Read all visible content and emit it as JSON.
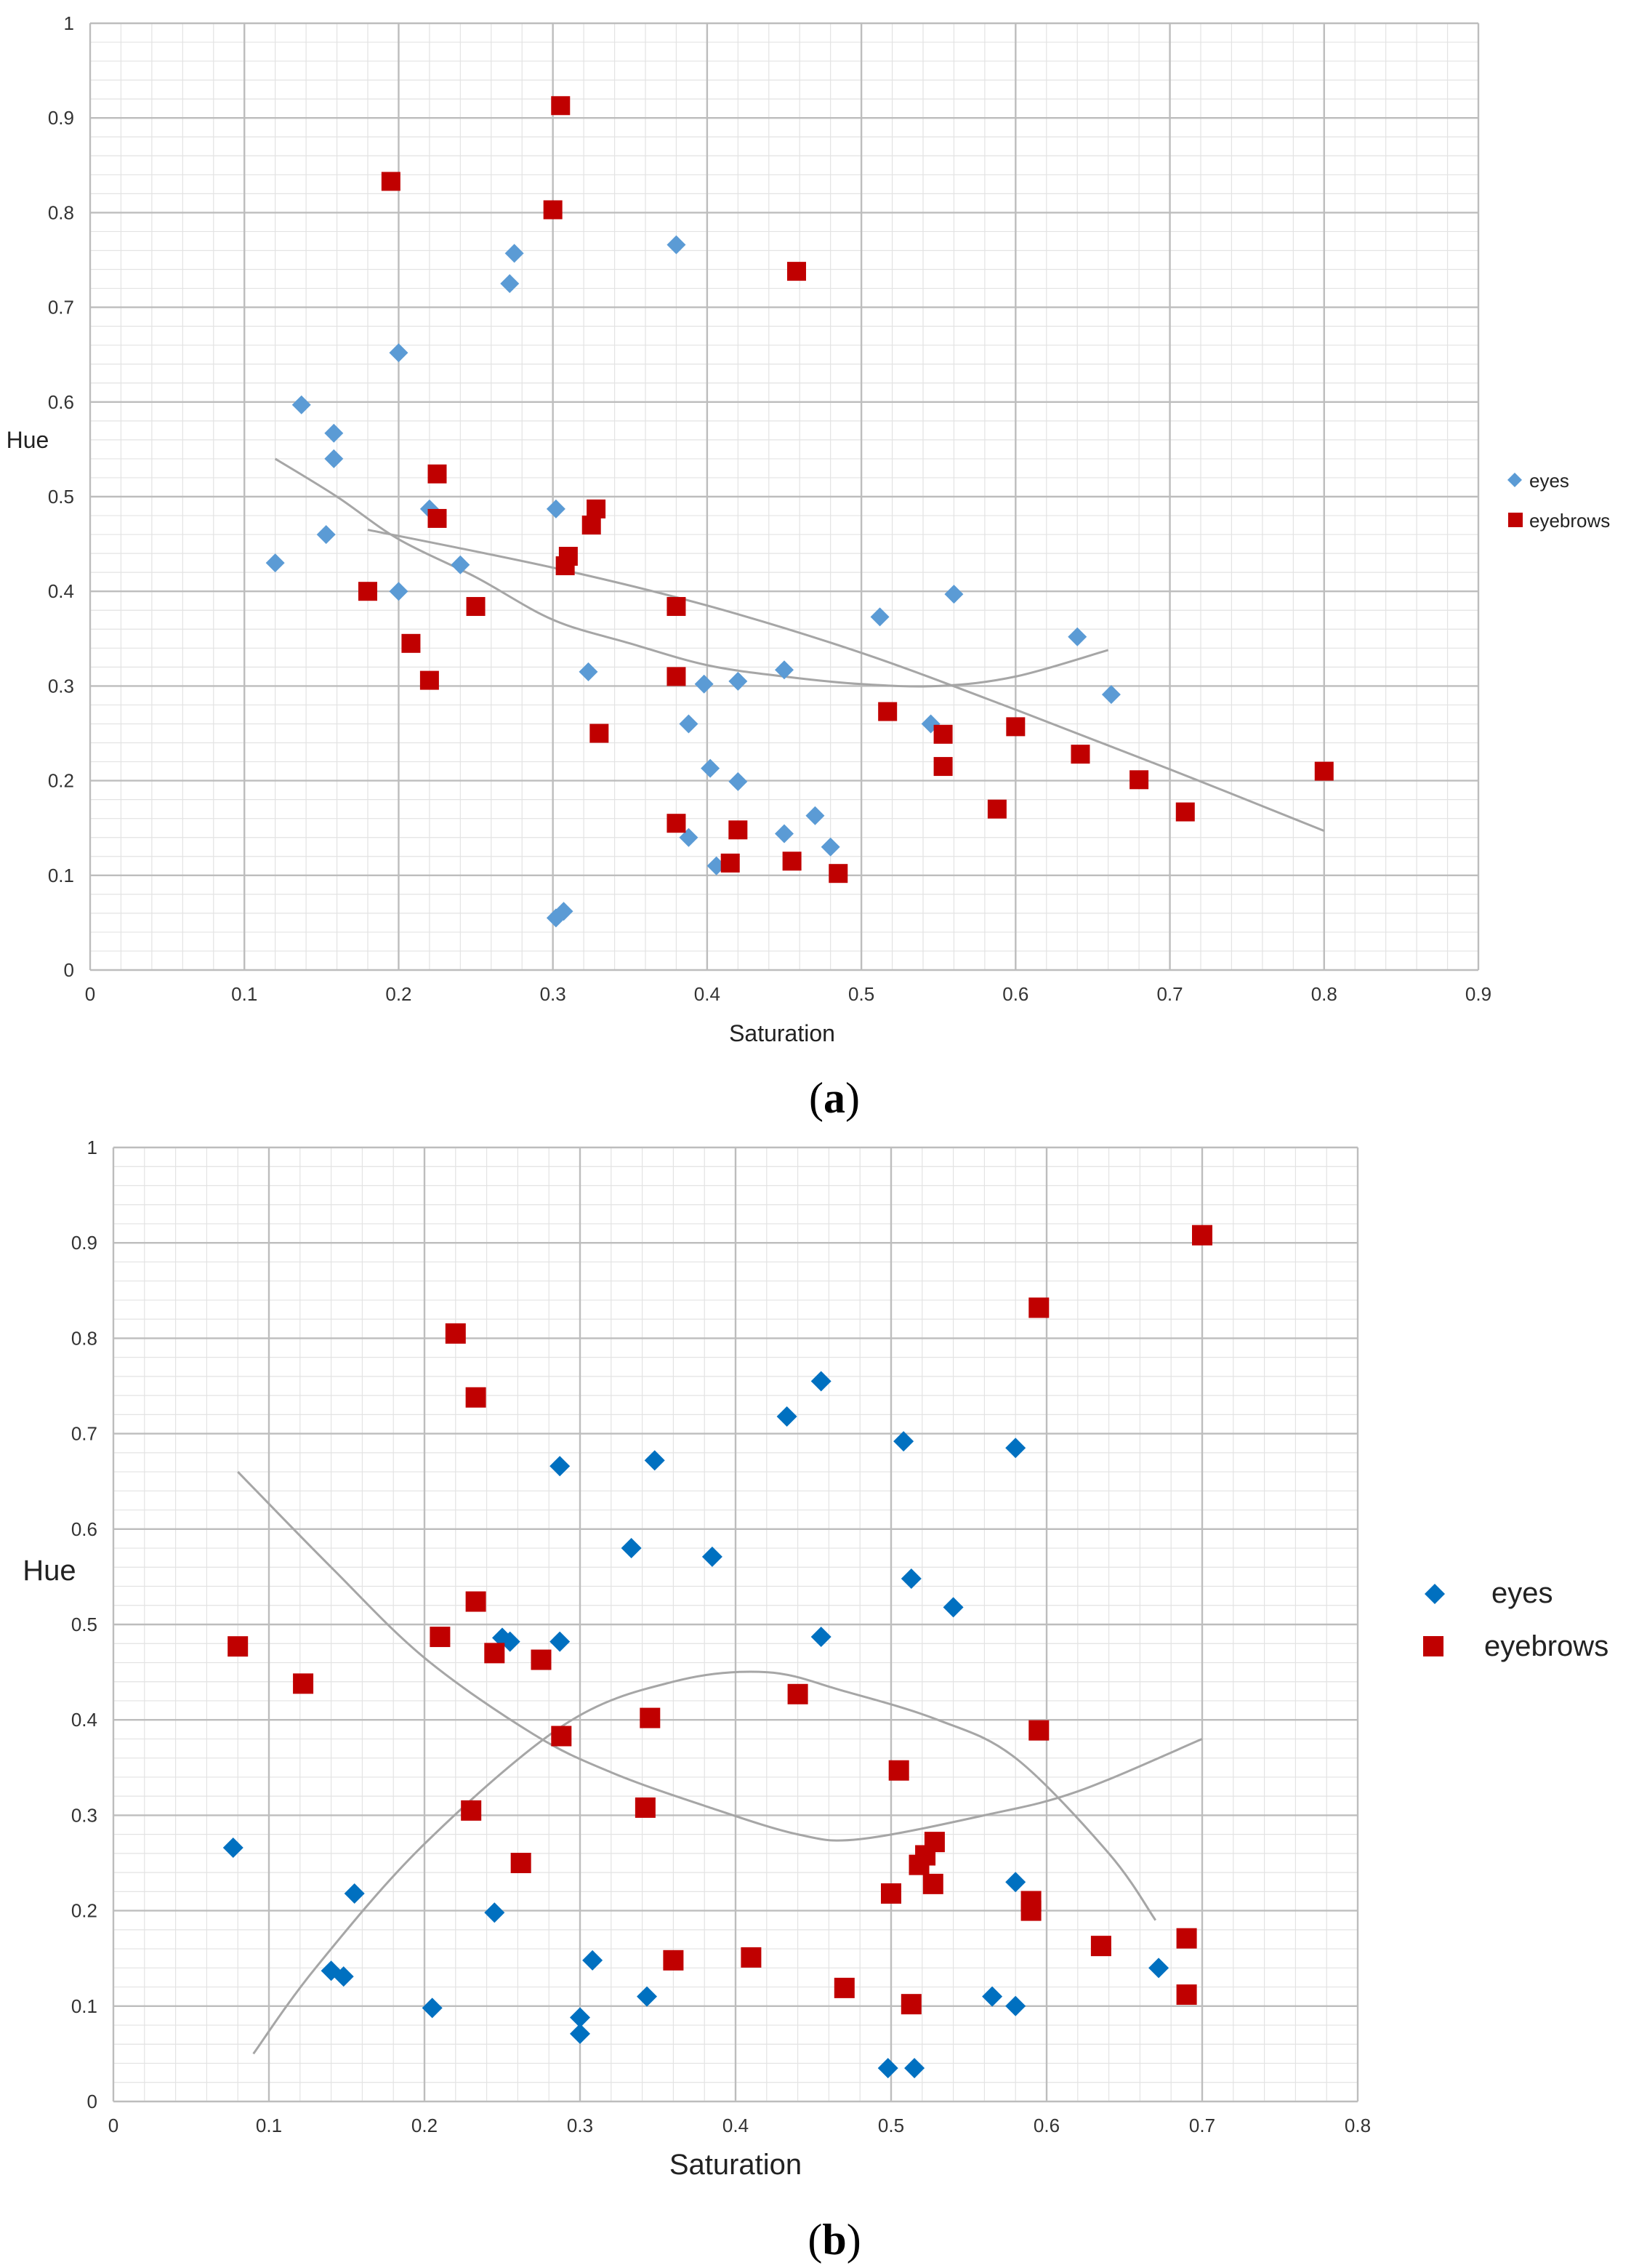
{
  "chart_data": [
    {
      "type": "scatter",
      "panel": "a",
      "panel_label_prefix": "(",
      "panel_label_letter": "a",
      "panel_label_suffix": ")",
      "xlabel": "Saturation",
      "ylabel": "Hue",
      "xlim": [
        0,
        0.9
      ],
      "ylim": [
        0,
        1
      ],
      "x_ticks": [
        "0",
        "0.1",
        "0.2",
        "0.3",
        "0.4",
        "0.5",
        "0.6",
        "0.7",
        "0.8",
        "0.9"
      ],
      "y_ticks": [
        "0",
        "0.1",
        "0.2",
        "0.3",
        "0.4",
        "0.5",
        "0.6",
        "0.7",
        "0.8",
        "0.9",
        "1"
      ],
      "legend": [
        "eyes",
        "eyebrows"
      ],
      "series": [
        {
          "name": "eyes",
          "marker": "diamond",
          "color": "#5b9bd5",
          "points": [
            [
              0.12,
              0.43
            ],
            [
              0.137,
              0.597
            ],
            [
              0.153,
              0.46
            ],
            [
              0.158,
              0.567
            ],
            [
              0.158,
              0.54
            ],
            [
              0.2,
              0.652
            ],
            [
              0.2,
              0.4
            ],
            [
              0.22,
              0.487
            ],
            [
              0.24,
              0.428
            ],
            [
              0.272,
              0.725
            ],
            [
              0.275,
              0.757
            ],
            [
              0.302,
              0.487
            ],
            [
              0.323,
              0.315
            ],
            [
              0.302,
              0.055
            ],
            [
              0.307,
              0.062
            ],
            [
              0.38,
              0.766
            ],
            [
              0.388,
              0.26
            ],
            [
              0.388,
              0.14
            ],
            [
              0.398,
              0.302
            ],
            [
              0.402,
              0.213
            ],
            [
              0.406,
              0.11
            ],
            [
              0.42,
              0.305
            ],
            [
              0.42,
              0.199
            ],
            [
              0.45,
              0.317
            ],
            [
              0.45,
              0.144
            ],
            [
              0.47,
              0.163
            ],
            [
              0.48,
              0.13
            ],
            [
              0.512,
              0.373
            ],
            [
              0.545,
              0.26
            ],
            [
              0.56,
              0.397
            ],
            [
              0.64,
              0.352
            ],
            [
              0.662,
              0.291
            ]
          ]
        },
        {
          "name": "eyebrows",
          "marker": "square",
          "color": "#c00000",
          "points": [
            [
              0.195,
              0.833
            ],
            [
              0.305,
              0.913
            ],
            [
              0.3,
              0.803
            ],
            [
              0.458,
              0.738
            ],
            [
              0.225,
              0.524
            ],
            [
              0.225,
              0.477
            ],
            [
              0.328,
              0.487
            ],
            [
              0.325,
              0.47
            ],
            [
              0.31,
              0.437
            ],
            [
              0.308,
              0.427
            ],
            [
              0.18,
              0.4
            ],
            [
              0.208,
              0.345
            ],
            [
              0.22,
              0.306
            ],
            [
              0.25,
              0.384
            ],
            [
              0.38,
              0.384
            ],
            [
              0.38,
              0.31
            ],
            [
              0.33,
              0.25
            ],
            [
              0.38,
              0.155
            ],
            [
              0.415,
              0.113
            ],
            [
              0.42,
              0.148
            ],
            [
              0.455,
              0.115
            ],
            [
              0.485,
              0.102
            ],
            [
              0.517,
              0.273
            ],
            [
              0.553,
              0.249
            ],
            [
              0.553,
              0.215
            ],
            [
              0.588,
              0.17
            ],
            [
              0.6,
              0.257
            ],
            [
              0.642,
              0.228
            ],
            [
              0.68,
              0.201
            ],
            [
              0.71,
              0.167
            ],
            [
              0.8,
              0.21
            ]
          ]
        }
      ],
      "curves": [
        {
          "name": "eyes trend",
          "points": [
            [
              0.12,
              0.54
            ],
            [
              0.16,
              0.5
            ],
            [
              0.2,
              0.455
            ],
            [
              0.25,
              0.415
            ],
            [
              0.3,
              0.37
            ],
            [
              0.35,
              0.345
            ],
            [
              0.4,
              0.322
            ],
            [
              0.45,
              0.31
            ],
            [
              0.5,
              0.302
            ],
            [
              0.55,
              0.3
            ],
            [
              0.6,
              0.31
            ],
            [
              0.66,
              0.338
            ]
          ]
        },
        {
          "name": "eyebrows trend",
          "points": [
            [
              0.18,
              0.465
            ],
            [
              0.3,
              0.425
            ],
            [
              0.4,
              0.385
            ],
            [
              0.5,
              0.335
            ],
            [
              0.6,
              0.275
            ],
            [
              0.7,
              0.212
            ],
            [
              0.8,
              0.147
            ]
          ]
        }
      ]
    },
    {
      "type": "scatter",
      "panel": "b",
      "panel_label_prefix": "(",
      "panel_label_letter": "b",
      "panel_label_suffix": ")",
      "xlabel": "Saturation",
      "ylabel": "Hue",
      "xlim": [
        0,
        0.8
      ],
      "ylim": [
        0,
        1
      ],
      "x_ticks": [
        "0",
        "0.1",
        "0.2",
        "0.3",
        "0.4",
        "0.5",
        "0.6",
        "0.7",
        "0.8"
      ],
      "y_ticks": [
        "0",
        "0.1",
        "0.2",
        "0.3",
        "0.4",
        "0.5",
        "0.6",
        "0.7",
        "0.8",
        "0.9",
        "1"
      ],
      "legend": [
        "eyes",
        "eyebrows"
      ],
      "series": [
        {
          "name": "eyes",
          "marker": "diamond",
          "color": "#0070c0",
          "points": [
            [
              0.077,
              0.266
            ],
            [
              0.14,
              0.137
            ],
            [
              0.148,
              0.131
            ],
            [
              0.155,
              0.218
            ],
            [
              0.205,
              0.098
            ],
            [
              0.245,
              0.198
            ],
            [
              0.25,
              0.486
            ],
            [
              0.255,
              0.482
            ],
            [
              0.287,
              0.482
            ],
            [
              0.287,
              0.666
            ],
            [
              0.3,
              0.088
            ],
            [
              0.3,
              0.071
            ],
            [
              0.308,
              0.148
            ],
            [
              0.333,
              0.58
            ],
            [
              0.343,
              0.11
            ],
            [
              0.348,
              0.672
            ],
            [
              0.385,
              0.571
            ],
            [
              0.433,
              0.718
            ],
            [
              0.455,
              0.755
            ],
            [
              0.455,
              0.487
            ],
            [
              0.498,
              0.035
            ],
            [
              0.508,
              0.692
            ],
            [
              0.513,
              0.548
            ],
            [
              0.515,
              0.035
            ],
            [
              0.54,
              0.518
            ],
            [
              0.565,
              0.11
            ],
            [
              0.58,
              0.685
            ],
            [
              0.58,
              0.23
            ],
            [
              0.58,
              0.1
            ],
            [
              0.672,
              0.14
            ]
          ]
        },
        {
          "name": "eyebrows",
          "marker": "square",
          "color": "#c00000",
          "points": [
            [
              0.08,
              0.477
            ],
            [
              0.122,
              0.438
            ],
            [
              0.22,
              0.805
            ],
            [
              0.233,
              0.738
            ],
            [
              0.233,
              0.524
            ],
            [
              0.21,
              0.487
            ],
            [
              0.245,
              0.47
            ],
            [
              0.275,
              0.463
            ],
            [
              0.23,
              0.305
            ],
            [
              0.262,
              0.25
            ],
            [
              0.288,
              0.383
            ],
            [
              0.345,
              0.402
            ],
            [
              0.342,
              0.308
            ],
            [
              0.36,
              0.148
            ],
            [
              0.41,
              0.151
            ],
            [
              0.44,
              0.427
            ],
            [
              0.47,
              0.119
            ],
            [
              0.505,
              0.347
            ],
            [
              0.5,
              0.218
            ],
            [
              0.513,
              0.102
            ],
            [
              0.518,
              0.248
            ],
            [
              0.522,
              0.258
            ],
            [
              0.528,
              0.272
            ],
            [
              0.527,
              0.228
            ],
            [
              0.59,
              0.21
            ],
            [
              0.59,
              0.2
            ],
            [
              0.595,
              0.832
            ],
            [
              0.595,
              0.389
            ],
            [
              0.635,
              0.163
            ],
            [
              0.69,
              0.171
            ],
            [
              0.69,
              0.112
            ],
            [
              0.7,
              0.908
            ]
          ]
        }
      ],
      "curves": [
        {
          "name": "eyes trend",
          "points": [
            [
              0.09,
              0.05
            ],
            [
              0.13,
              0.14
            ],
            [
              0.2,
              0.27
            ],
            [
              0.29,
              0.395
            ],
            [
              0.36,
              0.44
            ],
            [
              0.42,
              0.45
            ],
            [
              0.47,
              0.43
            ],
            [
              0.53,
              0.4
            ],
            [
              0.58,
              0.36
            ],
            [
              0.64,
              0.26
            ],
            [
              0.67,
              0.19
            ]
          ]
        },
        {
          "name": "eyebrows trend",
          "points": [
            [
              0.08,
              0.66
            ],
            [
              0.14,
              0.56
            ],
            [
              0.2,
              0.465
            ],
            [
              0.27,
              0.385
            ],
            [
              0.32,
              0.345
            ],
            [
              0.38,
              0.31
            ],
            [
              0.44,
              0.28
            ],
            [
              0.48,
              0.275
            ],
            [
              0.56,
              0.3
            ],
            [
              0.62,
              0.325
            ],
            [
              0.7,
              0.38
            ]
          ]
        }
      ]
    }
  ]
}
